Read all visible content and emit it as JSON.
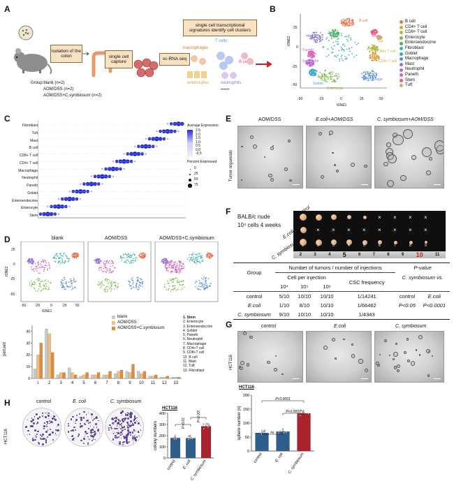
{
  "panels": {
    "a": "A",
    "b": "B",
    "c": "C",
    "d": "D",
    "e": "E",
    "f": "F",
    "g": "G",
    "h": "H"
  },
  "panel_a": {
    "steps": [
      "isolation of the colon",
      "single cell capture",
      "sc-RNA seq",
      "single cell transcriptional signatures identify cell clusters"
    ],
    "cell_labels": [
      "macrophages",
      "T cells",
      "B cells",
      "enterocytes",
      "neutrophils"
    ],
    "groups": [
      "Group:blank   (n=2)",
      "AOM/DSS (n=2)",
      "AOM/DSS+C.symbiosum (n=2)"
    ],
    "dots": "••••••"
  },
  "panel_b": {
    "xlabel": "tSNE1",
    "ylabel": "tSNE2",
    "xticks": [
      "-50",
      "-25",
      "0",
      "25",
      "50"
    ],
    "yticks": [
      "25",
      "0",
      "-25",
      "-50"
    ],
    "legend": [
      "B cell",
      "CD4+ T cell",
      "CD8+ T cell",
      "Enterocyte",
      "Enteroendocrine",
      "Fibroblast",
      "Goblet",
      "Macrophage",
      "Mast",
      "Neutrophil",
      "Paneth",
      "Stem",
      "Tuft"
    ],
    "colors": [
      "#e8734a",
      "#d9a441",
      "#b5b83a",
      "#7fb84a",
      "#48b06c",
      "#3fb3a6",
      "#3aa7c9",
      "#5b8fd6",
      "#8c77d6",
      "#b36ad0",
      "#d763b8",
      "#e0608a",
      "#c9b36a"
    ],
    "cluster_labels": [
      "Mast",
      "B cell",
      "Stem",
      "Tuft",
      "Paneth",
      "Neutrophil",
      "CD8+ T cell",
      "CD4+ T cell",
      "Macrophage",
      "Enterocyte",
      "Goblet"
    ]
  },
  "panel_c": {
    "rows": [
      "Fibroblast",
      "Tuft",
      "Mast",
      "B cell",
      "CD8+ T cell",
      "CD4+ T cell",
      "Macrophage",
      "Neutrophil",
      "Paneth",
      "Goblet",
      "Enteroendocrine",
      "Enterocyte",
      "Stem"
    ],
    "avg_expr_title": "Average Expression",
    "avg_expr_ticks": [
      "2.5",
      "2.0",
      "1.5",
      "1.0",
      "0.5",
      "0.0",
      "-0.5"
    ],
    "pct_title": "Percent Expressed",
    "pct_ticks": [
      "0",
      "25",
      "50",
      "75"
    ]
  },
  "panel_d": {
    "titles": [
      "blank",
      "AOM/DSS",
      "AOM/DSS+C.symbiosum"
    ],
    "xlabel": "tSNE1",
    "ylabel": "tSNE2",
    "xticks": [
      "-50",
      "-25",
      "0",
      "25",
      "50"
    ],
    "yticks": [
      "25",
      "0",
      "-25",
      "-50"
    ],
    "legend": [
      "blank",
      "AOM/DSS",
      "AOM/DSS+C.symbiosum"
    ],
    "legend_colors": [
      "#c9c9c9",
      "#f2c179",
      "#e08a3c"
    ],
    "bar_ylabel": "percent",
    "bar_yticks": [
      "40",
      "30",
      "20",
      "10",
      "5",
      "0"
    ],
    "cell_index": [
      "1. Stem",
      "2. Enterocyte",
      "3. Enteroendocrine",
      "4. Goblet",
      "5. Paneth",
      "6. Neutrophil",
      "7. Macrophage",
      "8. CD4+T cell",
      "9. CD8+T cell",
      "10. B cell",
      "11. Mast",
      "12. Tuft",
      "13. Fibroblast"
    ]
  },
  "chart_data": {
    "type": "bar",
    "categories": [
      "1",
      "2",
      "3",
      "4",
      "5",
      "6",
      "7",
      "8",
      "9",
      "10",
      "11",
      "12",
      "13"
    ],
    "series": [
      {
        "name": "blank",
        "values": [
          8,
          42,
          3,
          9,
          2,
          3,
          3,
          4,
          6,
          6,
          2,
          1,
          1
        ]
      },
      {
        "name": "AOM/DSS",
        "values": [
          20,
          38,
          5,
          5,
          3,
          3,
          3,
          6,
          5,
          4,
          2,
          1,
          1
        ]
      },
      {
        "name": "AOM/DSS+C.symbiosum",
        "values": [
          30,
          22,
          5,
          3,
          5,
          5,
          6,
          7,
          12,
          6,
          3,
          2,
          1
        ]
      }
    ],
    "ylabel": "percent",
    "ylim": [
      0,
      45
    ]
  },
  "panel_e": {
    "titles": [
      "AOM/DSS",
      "E.coli+AOM/DSS",
      "C. symbiosum+AOM/DSS"
    ],
    "side_label": "Tumor organoids"
  },
  "panel_f": {
    "mouse_label": "BALB/c nude",
    "cells_label": "10⁴ cells 4 weeks",
    "row_labels": [
      "control",
      "E.coli",
      "C. symbiosum"
    ],
    "ruler": [
      "2",
      "3",
      "4",
      "5",
      "6",
      "7",
      "8",
      "9",
      "10",
      "11"
    ],
    "tumor_numbers": [
      "1",
      "2",
      "3",
      "4",
      "5",
      "6",
      "7",
      "8",
      "9"
    ],
    "table_header_top": "Number of tumors / number of injections",
    "table_group": "Group",
    "table_cpi": "Cell per injection",
    "table_csc": "CSC frequency",
    "table_pvalue": "P-value",
    "table_pvalue_sub": "C. symbiosum vs.",
    "cols": [
      "10⁴",
      "10⁵",
      "10⁶"
    ],
    "pcols": [
      "control",
      "E.coli"
    ],
    "rows": [
      {
        "group": "control",
        "c1": "5/10",
        "c2": "10/10",
        "c3": "10/10",
        "csc": "1/14241",
        "p1": "control",
        "p2": "E.coli"
      },
      {
        "group": "E.coli",
        "c1": "1/10",
        "c2": "8/10",
        "c3": "10/10",
        "csc": "1/66462",
        "p1": "P<0.05",
        "p2": "P<0.0001"
      },
      {
        "group": "C. symbiosum",
        "c1": "9/10",
        "c2": "10/10",
        "c3": "10/10",
        "csc": "1/4343",
        "p1": "",
        "p2": ""
      }
    ]
  },
  "panel_g": {
    "titles": [
      "control",
      "E.coli",
      "C. symbiosum"
    ],
    "side_label": "HCT116",
    "chart_title": "HCT116",
    "ylabel": "sphere number (n)",
    "yticks": [
      "200",
      "150",
      "100",
      "50",
      "0"
    ],
    "xcats": [
      "control",
      "E. coli",
      "C. symbiosum"
    ],
    "sig": [
      "ns",
      "P<0.0001",
      "P<0.0001"
    ],
    "values": [
      65,
      70,
      135
    ],
    "colors": [
      "#2f5d8c",
      "#2f5d8c",
      "#a8232b"
    ]
  },
  "panel_h": {
    "titles": [
      "control",
      "E. coli",
      "C. symbiosum"
    ],
    "side_label": "HCT116",
    "chart_title": "HCT116",
    "ylabel": "colony numbers",
    "yticks": [
      "400",
      "300",
      "200",
      "100",
      "0"
    ],
    "xcats": [
      "control",
      "E. coli",
      "C. symbiosum"
    ],
    "sig": [
      "P<0.01",
      "P<0.005"
    ],
    "values": [
      180,
      178,
      285
    ],
    "colors": [
      "#2f5d8c",
      "#2f5d8c",
      "#a8232b"
    ]
  }
}
